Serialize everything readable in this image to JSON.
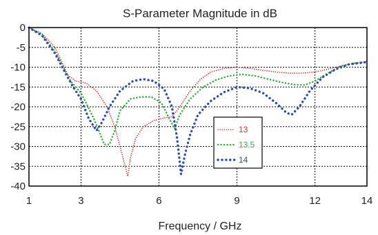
{
  "chart_data": {
    "type": "line",
    "title": "S-Parameter Magnitude in dB",
    "xlabel": "Frequency / GHz",
    "ylabel": "",
    "xlim": [
      1,
      14
    ],
    "ylim": [
      -40,
      0
    ],
    "xticks": [
      1,
      3,
      6,
      9,
      12,
      14
    ],
    "yticks": [
      0,
      -5,
      -10,
      -15,
      -20,
      -25,
      -30,
      -35,
      -40
    ],
    "grid": true,
    "legend_position": "lower-center",
    "line_style": "dotted",
    "series": [
      {
        "name": "13",
        "color": "#e8302a",
        "points": [
          [
            1,
            0
          ],
          [
            1.5,
            -1.5
          ],
          [
            2,
            -5
          ],
          [
            2.5,
            -12
          ],
          [
            2.8,
            -13.5
          ],
          [
            3.2,
            -14
          ],
          [
            3.6,
            -16
          ],
          [
            4,
            -20
          ],
          [
            4.3,
            -25
          ],
          [
            4.5,
            -30
          ],
          [
            4.7,
            -35
          ],
          [
            4.8,
            -37.5
          ],
          [
            4.9,
            -33
          ],
          [
            5.1,
            -28
          ],
          [
            5.4,
            -25
          ],
          [
            5.8,
            -23.5
          ],
          [
            6.2,
            -22.8
          ],
          [
            6.5,
            -22.5
          ],
          [
            6.8,
            -20
          ],
          [
            7.2,
            -16
          ],
          [
            7.6,
            -13
          ],
          [
            8,
            -11.2
          ],
          [
            8.5,
            -10.3
          ],
          [
            9,
            -10
          ],
          [
            9.5,
            -10.3
          ],
          [
            10,
            -10.8
          ],
          [
            10.5,
            -11.2
          ],
          [
            11,
            -11.5
          ],
          [
            11.5,
            -11.5
          ],
          [
            12,
            -11.2
          ],
          [
            12.5,
            -10.5
          ],
          [
            13,
            -9.7
          ],
          [
            13.5,
            -9
          ],
          [
            14,
            -8.5
          ]
        ]
      },
      {
        "name": "13.5",
        "color": "#3aa844",
        "points": [
          [
            1,
            0
          ],
          [
            1.5,
            -1.8
          ],
          [
            2,
            -6
          ],
          [
            2.4,
            -11
          ],
          [
            2.6,
            -13.5
          ],
          [
            3,
            -16.5
          ],
          [
            3.5,
            -23
          ],
          [
            3.9,
            -29.5
          ],
          [
            4.1,
            -29.5
          ],
          [
            4.3,
            -26
          ],
          [
            4.5,
            -21
          ],
          [
            4.9,
            -18
          ],
          [
            5.3,
            -17.5
          ],
          [
            5.7,
            -17.5
          ],
          [
            6.1,
            -19
          ],
          [
            6.4,
            -23
          ],
          [
            6.6,
            -25.5
          ],
          [
            6.8,
            -22
          ],
          [
            7.2,
            -18
          ],
          [
            7.7,
            -15
          ],
          [
            8.2,
            -13.2
          ],
          [
            8.7,
            -12.2
          ],
          [
            9.2,
            -11.8
          ],
          [
            9.7,
            -12.2
          ],
          [
            10.2,
            -13
          ],
          [
            10.7,
            -13.8
          ],
          [
            11.2,
            -14.4
          ],
          [
            11.6,
            -14.5
          ],
          [
            12,
            -13.5
          ],
          [
            12.5,
            -11.5
          ],
          [
            13,
            -9.7
          ],
          [
            13.5,
            -9
          ],
          [
            14,
            -8.7
          ]
        ]
      },
      {
        "name": "14",
        "color": "#2f4fa6",
        "points": [
          [
            1,
            0
          ],
          [
            1.5,
            -2
          ],
          [
            2,
            -6.5
          ],
          [
            2.4,
            -11.5
          ],
          [
            2.7,
            -15
          ],
          [
            3,
            -18
          ],
          [
            3.3,
            -23
          ],
          [
            3.6,
            -26
          ],
          [
            3.8,
            -24
          ],
          [
            4.1,
            -20
          ],
          [
            4.5,
            -16
          ],
          [
            5,
            -13.5
          ],
          [
            5.4,
            -13
          ],
          [
            5.8,
            -13.5
          ],
          [
            6.2,
            -15.5
          ],
          [
            6.5,
            -20
          ],
          [
            6.7,
            -28
          ],
          [
            6.85,
            -37
          ],
          [
            7,
            -32
          ],
          [
            7.2,
            -27
          ],
          [
            7.5,
            -22
          ],
          [
            8,
            -18.5
          ],
          [
            8.5,
            -16.3
          ],
          [
            9,
            -15
          ],
          [
            9.5,
            -15.3
          ],
          [
            10,
            -16.5
          ],
          [
            10.5,
            -19
          ],
          [
            10.9,
            -21.5
          ],
          [
            11.1,
            -22
          ],
          [
            11.4,
            -20
          ],
          [
            11.8,
            -16
          ],
          [
            12.3,
            -12.5
          ],
          [
            12.8,
            -10.5
          ],
          [
            13.3,
            -9.3
          ],
          [
            14,
            -8.7
          ]
        ]
      }
    ]
  }
}
